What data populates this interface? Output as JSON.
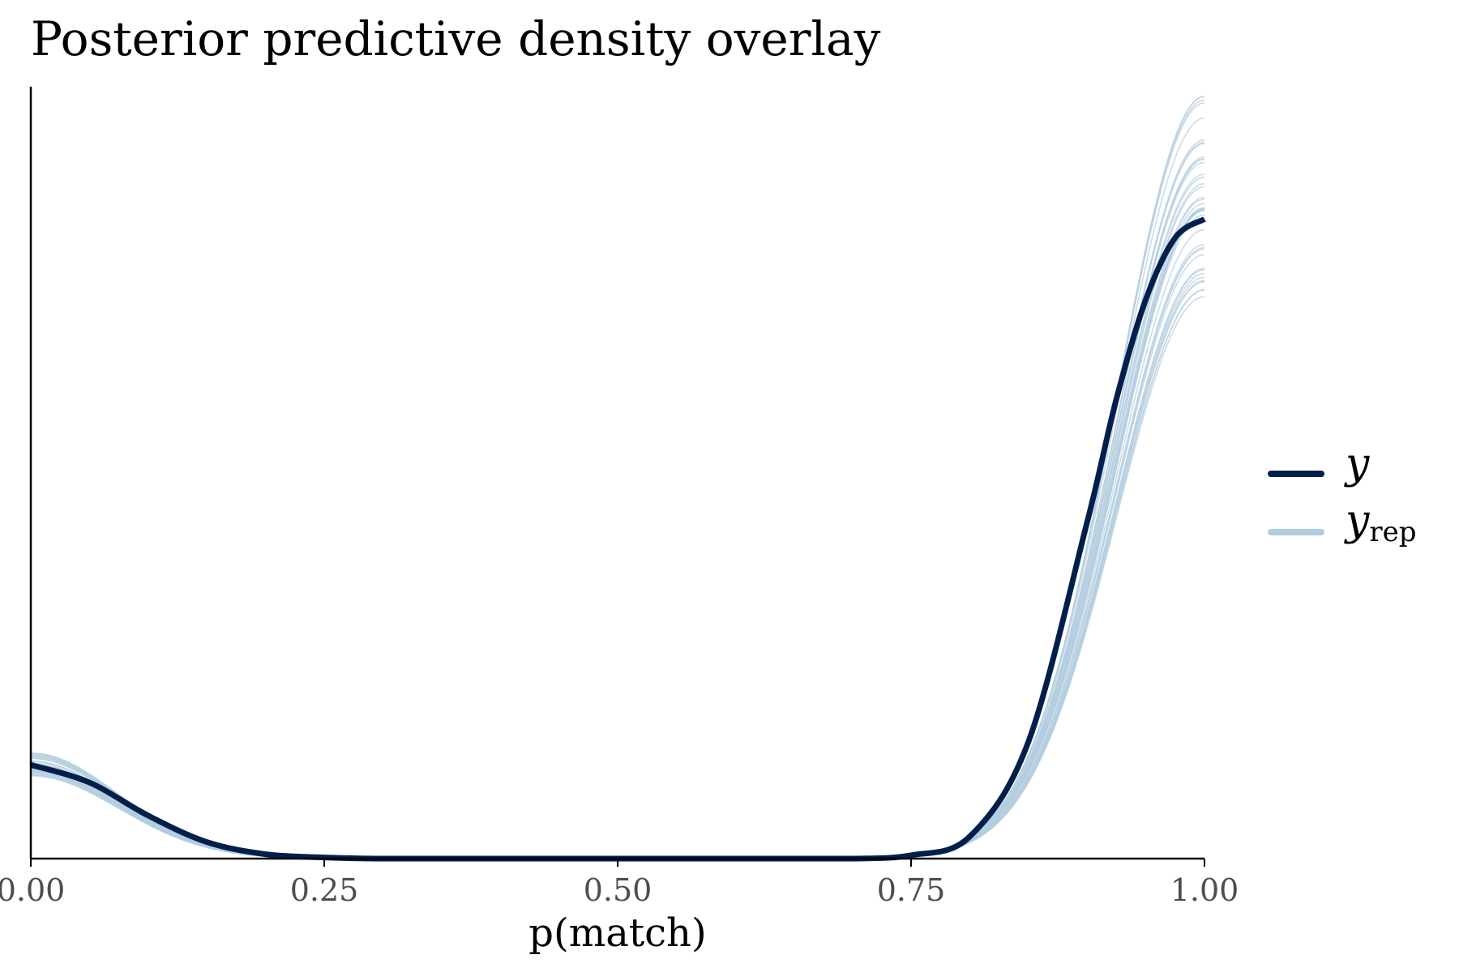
{
  "chart_data": {
    "type": "line",
    "title": "Posterior predictive density overlay",
    "xlabel": "p(match)",
    "ylabel": "",
    "xlim": [
      0,
      1
    ],
    "ylim": [
      0,
      7.0
    ],
    "x_ticks": [
      0,
      0.25,
      0.5,
      0.75,
      1.0
    ],
    "x_tick_labels": [
      "0.00",
      "0.25",
      "0.50",
      "0.75",
      "1.00"
    ],
    "y_axis_ticks_shown": false,
    "grid": false,
    "legend_position": "right",
    "legend": [
      {
        "symbol": "y",
        "subscript": "",
        "color": "#011f4b"
      },
      {
        "symbol": "y",
        "subscript": "rep",
        "color": "#b3cde0"
      }
    ],
    "observed": {
      "color": "#011f4b",
      "x": [
        0,
        0.05,
        0.1,
        0.15,
        0.2,
        0.25,
        0.3,
        0.4,
        0.5,
        0.6,
        0.7,
        0.75,
        0.8,
        0.85,
        0.9,
        0.925,
        0.95,
        0.975,
        1.0
      ],
      "y": [
        0.85,
        0.69,
        0.39,
        0.15,
        0.04,
        0.01,
        0.0,
        0.0,
        0.0,
        0.0,
        0.0,
        0.03,
        0.2,
        1.06,
        3.05,
        4.17,
        5.07,
        5.63,
        5.8
      ]
    },
    "replicates": {
      "color": "#b3cde0",
      "count": 40,
      "peak_range": [
        5.0,
        7.0
      ],
      "left_range": [
        0.74,
        0.96
      ]
    }
  }
}
